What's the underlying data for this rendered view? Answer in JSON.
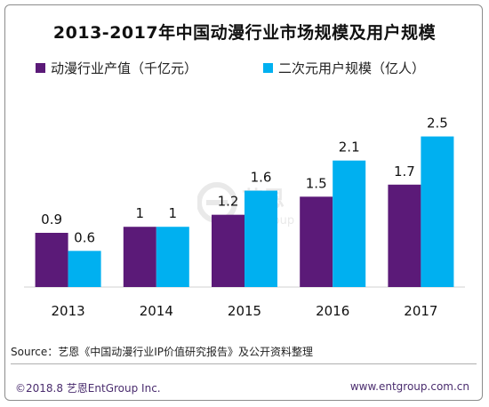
{
  "chart_data": {
    "type": "bar",
    "title": "2013-2017年中国动漫行业市场规模及用户规模",
    "categories": [
      "2013",
      "2014",
      "2015",
      "2016",
      "2017"
    ],
    "series": [
      {
        "name": "动漫行业产值（千亿元）",
        "values": [
          0.9,
          1,
          1.2,
          1.5,
          1.7
        ],
        "labels": [
          "0.9",
          "1",
          "1.2",
          "1.5",
          "1.7"
        ],
        "color": "#5b1a78"
      },
      {
        "name": "二次元用户规模（亿人）",
        "values": [
          0.6,
          1,
          1.6,
          2.1,
          2.5
        ],
        "labels": [
          "0.6",
          "1",
          "1.6",
          "2.1",
          "2.5"
        ],
        "color": "#00b0f0"
      }
    ],
    "xlabel": "",
    "ylabel": "",
    "ylim": [
      0,
      2.7
    ],
    "grid": false,
    "legend": "top"
  },
  "source_text": "Source：艺恩《中国动漫行业IP价值研究报告》及公开资料整理",
  "footer": {
    "left": "©2018.8  艺恩EntGroup Inc.",
    "right": "www.entgroup.com.cn"
  },
  "watermark": {
    "text_cn": "艺恩",
    "text_en": "entgroup",
    "icon": "entgroup-logo-icon"
  }
}
